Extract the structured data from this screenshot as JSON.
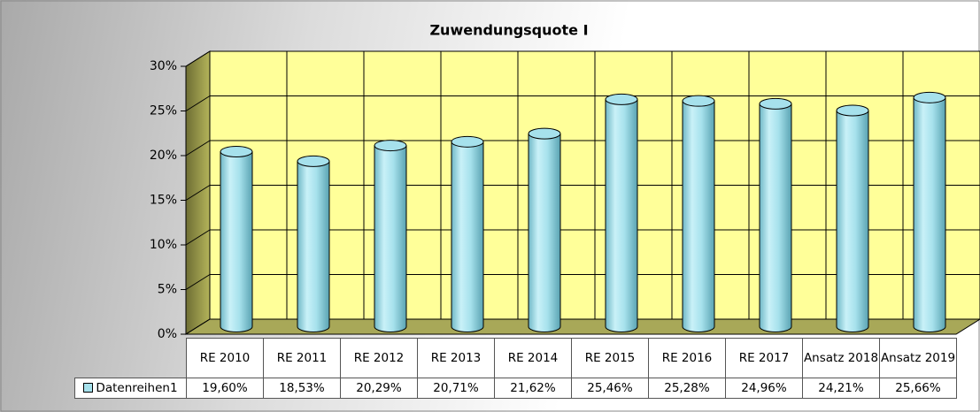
{
  "chart_data": {
    "type": "bar3d",
    "title": "Zuwendungsquote I",
    "categories": [
      "RE 2010",
      "RE 2011",
      "RE 2012",
      "RE 2013",
      "RE 2014",
      "RE 2015",
      "RE 2016",
      "RE 2017",
      "Ansatz 2018",
      "Ansatz 2019"
    ],
    "series": [
      {
        "name": "Datenreihen1",
        "color": "#a6e1ec",
        "values": [
          19.6,
          18.53,
          20.29,
          20.71,
          21.62,
          25.46,
          25.28,
          24.96,
          24.21,
          25.66
        ],
        "value_labels": [
          "19,60%",
          "18,53%",
          "20,29%",
          "20,71%",
          "21,62%",
          "25,46%",
          "25,28%",
          "24,96%",
          "24,21%",
          "25,66%"
        ]
      }
    ],
    "ylim": [
      0,
      30
    ],
    "yticks": [
      {
        "value": 0,
        "label": "0%"
      },
      {
        "value": 5,
        "label": "5%"
      },
      {
        "value": 10,
        "label": "10%"
      },
      {
        "value": 15,
        "label": "15%"
      },
      {
        "value": 20,
        "label": "20%"
      },
      {
        "value": 25,
        "label": "25%"
      },
      {
        "value": 30,
        "label": "30%"
      }
    ],
    "grid": true,
    "data_table": true
  }
}
